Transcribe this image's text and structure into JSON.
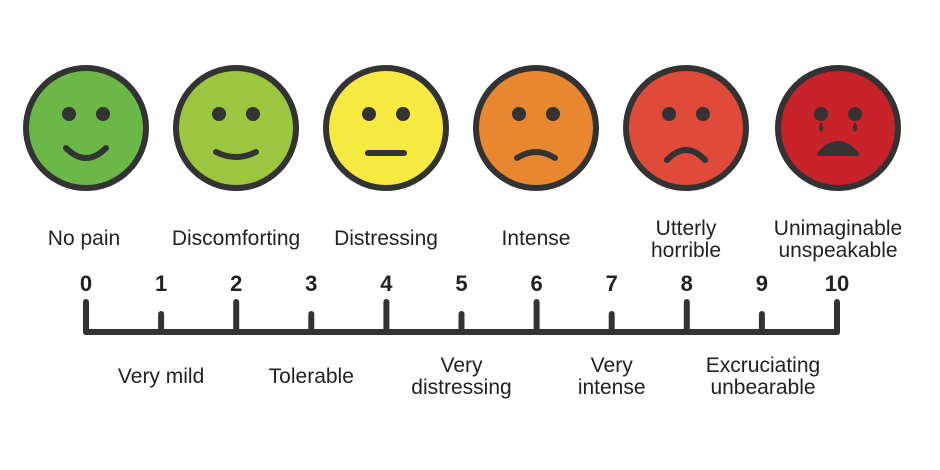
{
  "faces": [
    {
      "id": "face-0",
      "mood": "big-smile",
      "color": "#6bb747",
      "label": [
        "No pain"
      ]
    },
    {
      "id": "face-2",
      "mood": "smile",
      "color": "#9cc63f",
      "label": [
        "Discomforting"
      ]
    },
    {
      "id": "face-4",
      "mood": "neutral",
      "color": "#f6e93f",
      "label": [
        "Distressing"
      ]
    },
    {
      "id": "face-6",
      "mood": "frown",
      "color": "#e8872f",
      "label": [
        "Intense"
      ]
    },
    {
      "id": "face-8",
      "mood": "sad",
      "color": "#e04a3a",
      "label": [
        "Utterly",
        "horrible"
      ]
    },
    {
      "id": "face-10",
      "mood": "crying",
      "color": "#c8232a",
      "label": [
        "Unimaginable",
        "unspeakable"
      ]
    }
  ],
  "scale": {
    "numbers": [
      "0",
      "1",
      "2",
      "3",
      "4",
      "5",
      "6",
      "7",
      "8",
      "9",
      "10"
    ],
    "odd_labels": [
      {
        "value": "1",
        "label": [
          "Very mild"
        ]
      },
      {
        "value": "3",
        "label": [
          "Tolerable"
        ]
      },
      {
        "value": "5",
        "label": [
          "Very",
          "distressing"
        ]
      },
      {
        "value": "7",
        "label": [
          "Very",
          "intense"
        ]
      },
      {
        "value": "9",
        "label": [
          "Excruciating",
          "unbearable"
        ]
      }
    ]
  },
  "colors": {
    "outline": "#333333",
    "text": "#222222"
  }
}
